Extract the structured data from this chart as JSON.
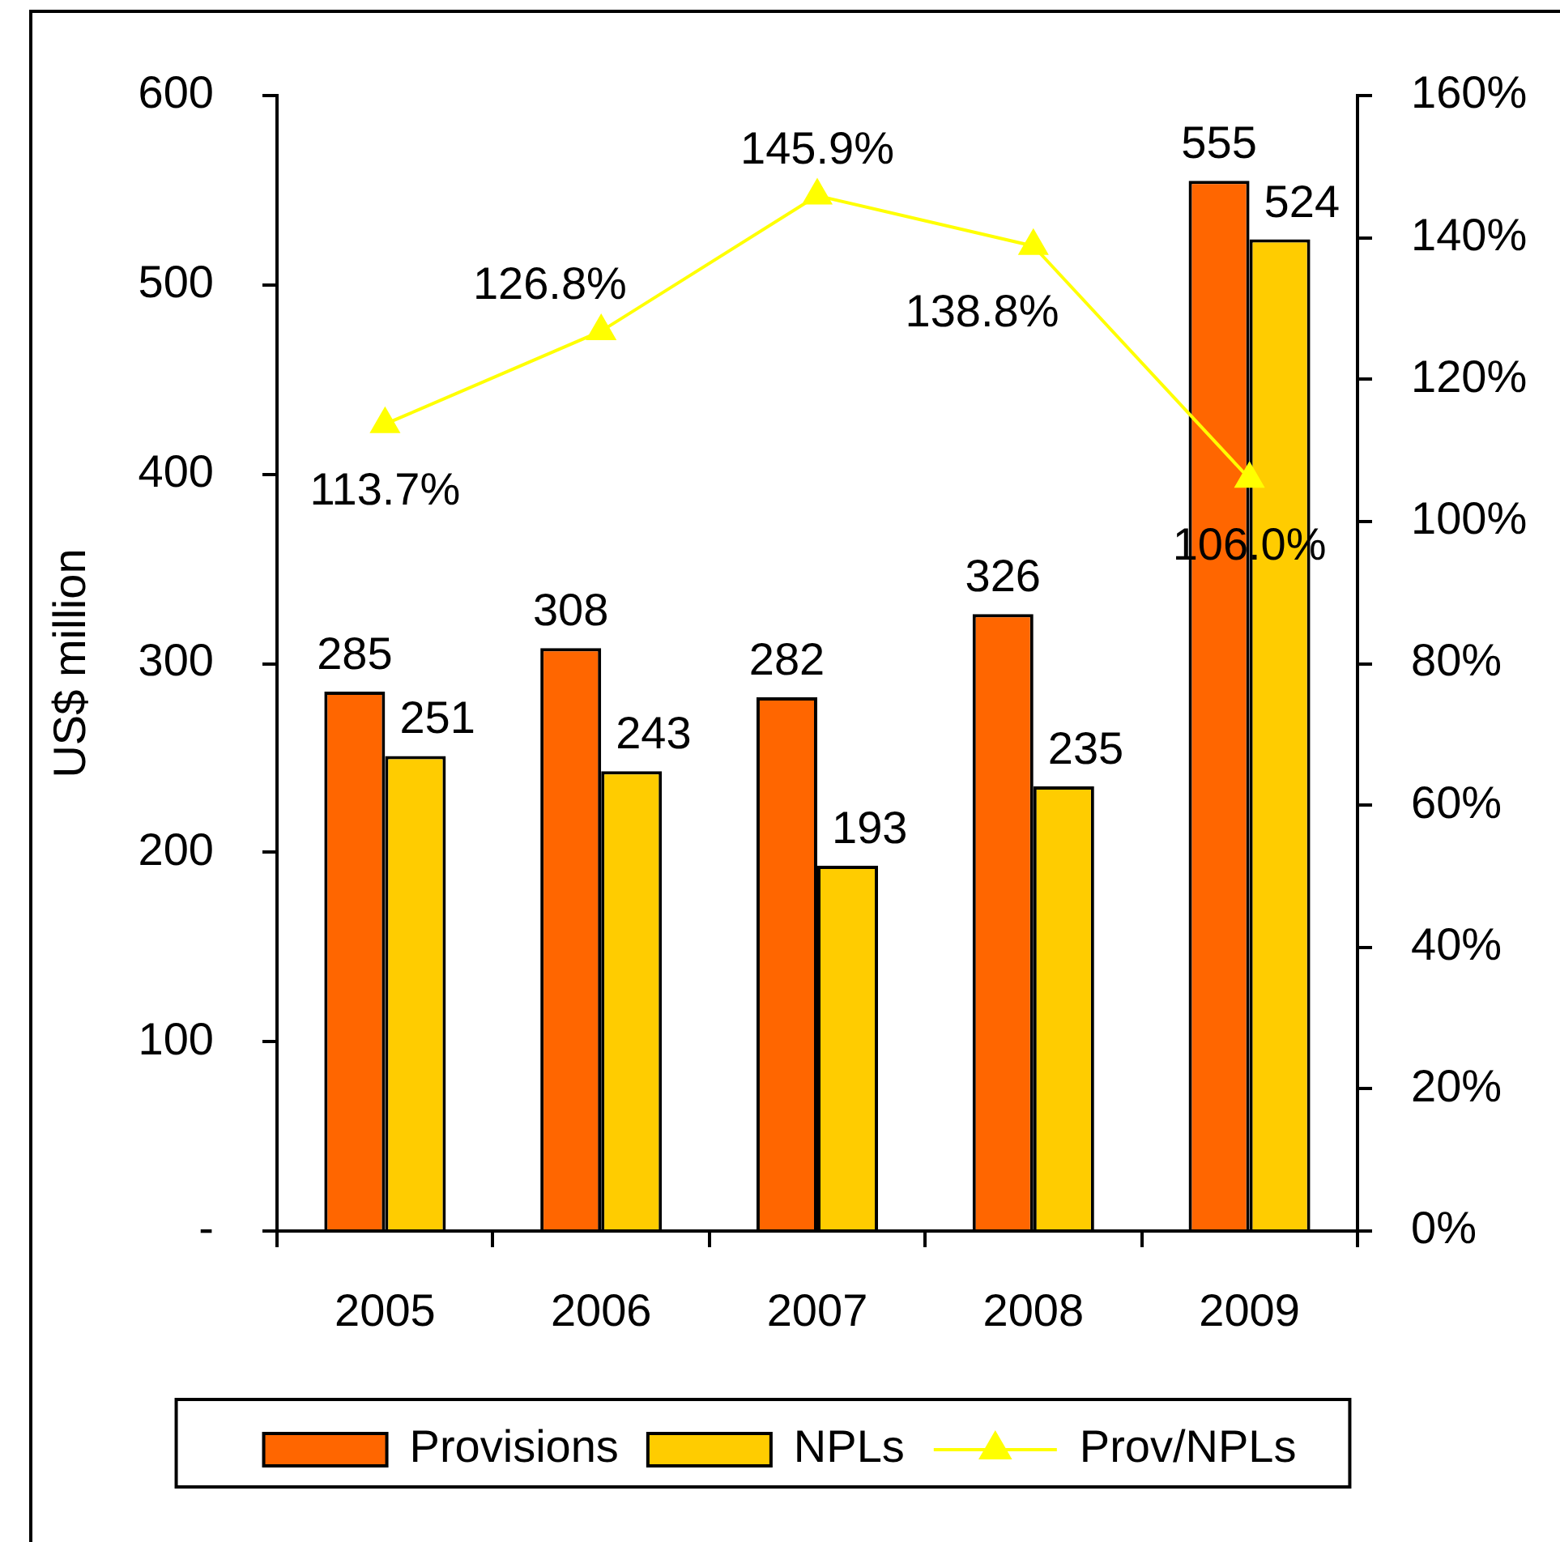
{
  "chart_data": {
    "type": "bar",
    "categories": [
      "2005",
      "2006",
      "2007",
      "2008",
      "2009"
    ],
    "series": [
      {
        "name": "Provisions",
        "color": "#ff6600",
        "values": [
          285,
          308,
          282,
          326,
          555
        ],
        "value_labels": [
          "285",
          "308",
          "282",
          "326",
          "555"
        ]
      },
      {
        "name": "NPLs",
        "color": "#ffcc00",
        "values": [
          251,
          243,
          193,
          235,
          524
        ],
        "value_labels": [
          "251",
          "243",
          "193",
          "235",
          "524"
        ]
      },
      {
        "name": "Prov/NPLs",
        "type": "line",
        "axis": "y2",
        "color": "#ffff00",
        "values": [
          113.7,
          126.8,
          145.9,
          138.8,
          106.0
        ],
        "value_labels": [
          "113.7%",
          "126.8%",
          "145.9%",
          "138.8%",
          "106.0%"
        ]
      }
    ],
    "ylabel": "US$ million",
    "ylim": [
      0,
      600
    ],
    "yticks": [
      {
        "value": 0,
        "label": "-"
      },
      100,
      200,
      300,
      400,
      500,
      600
    ],
    "y2lim": [
      0,
      160
    ],
    "y2ticks": [
      {
        "value": 0,
        "label": "0%"
      },
      {
        "value": 20,
        "label": "20%"
      },
      {
        "value": 40,
        "label": "40%"
      },
      {
        "value": 60,
        "label": "60%"
      },
      {
        "value": 80,
        "label": "80%"
      },
      {
        "value": 100,
        "label": "100%"
      },
      {
        "value": 120,
        "label": "120%"
      },
      {
        "value": 140,
        "label": "140%"
      },
      {
        "value": 160,
        "label": "160%"
      }
    ],
    "legend": "bottom",
    "grid": false,
    "marker": "triangle"
  }
}
